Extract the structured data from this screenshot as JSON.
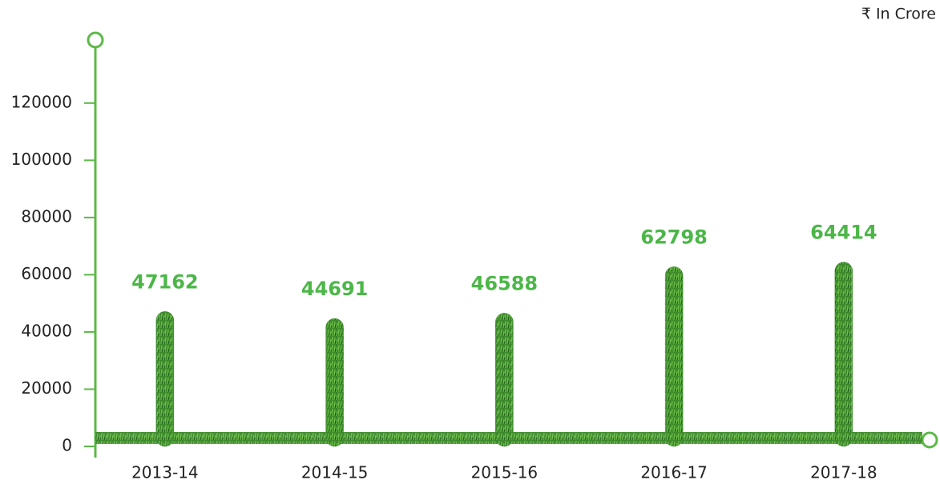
{
  "chart_data": {
    "type": "bar",
    "unit_label": "₹ In Crore",
    "categories": [
      "2013-14",
      "2014-15",
      "2015-16",
      "2016-17",
      "2017-18"
    ],
    "values": [
      47162,
      44691,
      46588,
      62798,
      64414
    ],
    "color": "#3f8f2e",
    "ylim": [
      0,
      140000
    ],
    "yticks": [
      0,
      20000,
      40000,
      60000,
      80000,
      100000,
      120000
    ],
    "grid": false
  }
}
